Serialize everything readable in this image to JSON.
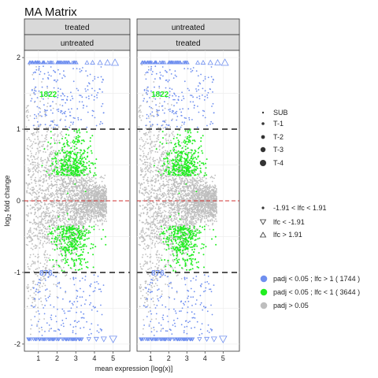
{
  "chart_data": {
    "type": "scatter",
    "title": "MA Matrix",
    "xlabel": "mean expression [log(x)]",
    "ylabel_main": "log",
    "ylabel_sub": "2",
    "ylabel_rest": " fold change",
    "xlim": [
      0.25,
      5.9
    ],
    "ylim": [
      -2.1,
      2.1
    ],
    "xticks": [
      1,
      2,
      3,
      4,
      5
    ],
    "yticks": [
      2,
      1,
      0,
      -1,
      -2
    ],
    "threshold_lines": [
      1,
      -1
    ],
    "zero_line": 0,
    "panels": [
      {
        "strip_top": "treated",
        "strip_bottom": "untreated",
        "count_up": "1822",
        "count_down": "876"
      },
      {
        "strip_top": "untreated",
        "strip_bottom": "treated",
        "count_up": "1822",
        "count_down": "876"
      }
    ],
    "legend_size": {
      "items": [
        "SUB",
        "T-1",
        "T-2",
        "T-3",
        "T-4"
      ]
    },
    "legend_shape": {
      "items": [
        "-1.91 < lfc < 1.91",
        "lfc <  -1.91",
        "lfc >  1.91"
      ]
    },
    "legend_color": {
      "items": [
        {
          "label": "padj < 0.05 ; lfc > 1  ( 1744 )",
          "color": "#6F8FEF"
        },
        {
          "label": "padj < 0.05 ; lfc < 1  ( 3644 )",
          "color": "#22EE22"
        },
        {
          "label": "padj > 0.05",
          "color": "#BEBEBE"
        }
      ]
    },
    "colors": {
      "blue": "#6F8FEF",
      "green": "#22EE22",
      "grey": "#BEBEBE",
      "zero_line": "#D03030",
      "threshold": "#555555"
    }
  }
}
